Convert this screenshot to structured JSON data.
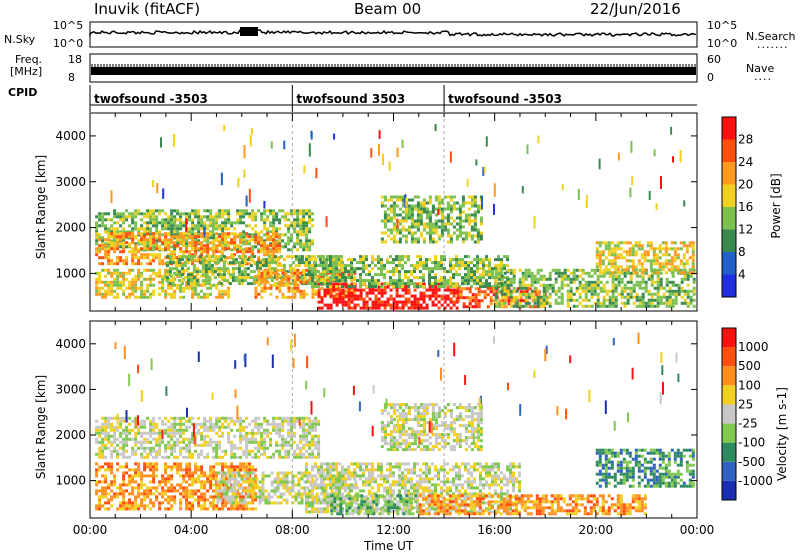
{
  "header": {
    "station": "Inuvik (fitACF)",
    "beam": "Beam 00",
    "date": "22/Jun/2016"
  },
  "top_panels": {
    "nsky": {
      "label": "N.Sky",
      "ticks": [
        "10^5",
        "10^0"
      ]
    },
    "nsearch": {
      "label": "N.Search",
      "ticks": [
        "10^5",
        "10^0"
      ]
    },
    "freq": {
      "label_line1": "Freq.",
      "label_line2": "[MHz]",
      "ticks": [
        "18",
        "8"
      ]
    },
    "nave": {
      "label": "Nave",
      "ticks": [
        "60",
        "0"
      ]
    },
    "cpid": {
      "label": "CPID",
      "segments": [
        {
          "name": "twofsound -3503",
          "start_hour": 0
        },
        {
          "name": "twofsound 3503",
          "start_hour": 8
        },
        {
          "name": "twofsound -3503",
          "start_hour": 14
        }
      ]
    }
  },
  "colors": {
    "power_scale": [
      "#2030e0",
      "#2060c8",
      "#3a8a50",
      "#7cc050",
      "#f0d020",
      "#ff9a20",
      "#ff5010",
      "#ff1010"
    ],
    "velocity_scale": [
      "#1a2fb0",
      "#3060c0",
      "#2e8a60",
      "#80c850",
      "#c8c8c8",
      "#f0d020",
      "#ff9020",
      "#ff5010",
      "#ff1010"
    ],
    "ground_scatter": "#b4b4b4"
  },
  "chart_data": [
    {
      "type": "heatmap",
      "name": "Power",
      "ylabel": "Slant Range [km]",
      "colorbar_label": "Power [dB]",
      "colorbar_ticks": [
        "4",
        "8",
        "12",
        "16",
        "20",
        "24",
        "28"
      ],
      "x_range_hours": [
        0,
        24
      ],
      "ylim": [
        180,
        4500
      ],
      "yticks": [
        1000,
        2000,
        3000,
        4000
      ],
      "regions": [
        {
          "t0": 0.2,
          "t1": 8.8,
          "r0": 1500,
          "r1": 2400,
          "level": 3
        },
        {
          "t0": 0.2,
          "t1": 7.5,
          "r0": 1200,
          "r1": 1900,
          "level": 5
        },
        {
          "t0": 0.2,
          "t1": 5.5,
          "r0": 500,
          "r1": 1100,
          "level": 4
        },
        {
          "t0": 3.0,
          "t1": 10.0,
          "r0": 800,
          "r1": 1400,
          "level": 3
        },
        {
          "t0": 6.5,
          "t1": 10.5,
          "r0": 500,
          "r1": 1100,
          "level": 5
        },
        {
          "t0": 9.0,
          "t1": 14.5,
          "r0": 250,
          "r1": 800,
          "level": 7
        },
        {
          "t0": 8.5,
          "t1": 16.5,
          "r0": 700,
          "r1": 1400,
          "level": 3
        },
        {
          "t0": 14.5,
          "t1": 18.0,
          "r0": 250,
          "r1": 700,
          "level": 6
        },
        {
          "t0": 16.0,
          "t1": 23.9,
          "r0": 250,
          "r1": 1100,
          "level": 3
        },
        {
          "t0": 20.0,
          "t1": 23.9,
          "r0": 1000,
          "r1": 1700,
          "level": 4
        },
        {
          "t0": 11.5,
          "t1": 15.5,
          "r0": 1700,
          "r1": 2700,
          "level": 3
        }
      ]
    },
    {
      "type": "heatmap",
      "name": "Velocity",
      "ylabel": "Slant Range [km]",
      "xlabel": "Time UT",
      "colorbar_label": "Velocity [m s-1]",
      "colorbar_ticks": [
        "-1000",
        "-500",
        "-100",
        "-25",
        "25",
        "100",
        "500",
        "1000"
      ],
      "x_range_hours": [
        0,
        24
      ],
      "x_tick_labels": [
        "00:00",
        "04:00",
        "08:00",
        "12:00",
        "16:00",
        "20:00",
        "00:00"
      ],
      "ylim": [
        180,
        4500
      ],
      "yticks": [
        1000,
        2000,
        3000,
        4000
      ],
      "regions": [
        {
          "t0": 0.2,
          "t1": 9.0,
          "r0": 1500,
          "r1": 2400,
          "level": 4
        },
        {
          "t0": 0.2,
          "t1": 6.5,
          "r0": 400,
          "r1": 1400,
          "level": 6
        },
        {
          "t0": 5.0,
          "t1": 10.5,
          "r0": 500,
          "r1": 1200,
          "level": 4
        },
        {
          "t0": 8.5,
          "t1": 17.0,
          "r0": 300,
          "r1": 1400,
          "level": 4
        },
        {
          "t0": 9.5,
          "t1": 13.0,
          "r0": 250,
          "r1": 700,
          "level": 3
        },
        {
          "t0": 13.0,
          "t1": 22.0,
          "r0": 250,
          "r1": 700,
          "level": 6
        },
        {
          "t0": 11.5,
          "t1": 15.5,
          "r0": 1700,
          "r1": 2700,
          "level": 4
        },
        {
          "t0": 20.0,
          "t1": 23.9,
          "r0": 900,
          "r1": 1700,
          "level": 2
        }
      ]
    }
  ]
}
